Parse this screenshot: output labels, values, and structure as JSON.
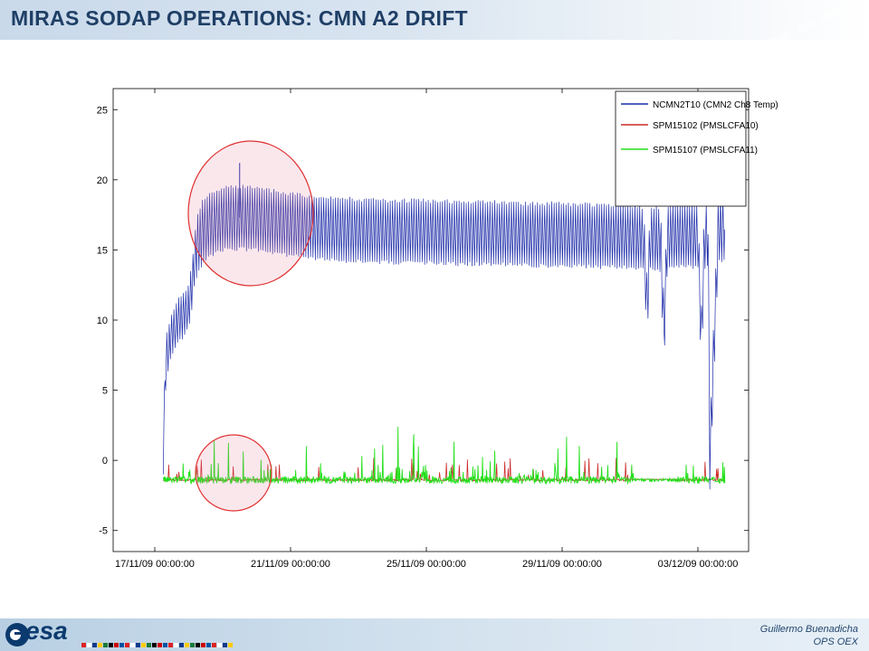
{
  "slide": {
    "title": "MIRAS SODAP OPERATIONS: CMN A2 DRIFT",
    "footer_logo": "esa",
    "author": "Guillermo Buenadicha",
    "department": "OPS OEX"
  },
  "colors": {
    "title": "#1f3f66",
    "ncmn": "#1c2ba8",
    "spm15102": "#cc2a2a",
    "spm15107": "#22e01a",
    "highlight_circle": "#e03030"
  },
  "chart_data": {
    "type": "line",
    "title": "",
    "xlabel": "",
    "ylabel": "",
    "xlim": [
      "17/11/09 00:00:00",
      "04/12/09 12:00:00"
    ],
    "ylim": [
      -6.5,
      26.5
    ],
    "yticks": [
      -5,
      0,
      5,
      10,
      15,
      20,
      25
    ],
    "ytick_labels": [
      "-5",
      "0",
      "5",
      "10",
      "15",
      "20",
      "25"
    ],
    "xtick_labels": [
      "17/11/09 00:00:00",
      "21/11/09 00:00:00",
      "25/11/09 00:00:00",
      "29/11/09 00:00:00",
      "03/12/09 00:00:00"
    ],
    "xtick_day_offsets": [
      0,
      4,
      8,
      12,
      16
    ],
    "grid": false,
    "legend_position": "top-right",
    "series": [
      {
        "name": "NCMN2T10 (CMN2 Ch8 Temp)",
        "color": "#1c2ba8",
        "x_days": [
          0.25,
          0.28,
          0.35,
          0.5,
          0.7,
          0.9,
          1.0,
          1.1,
          1.2,
          1.4,
          1.6,
          1.8,
          2.0,
          2.5,
          3.0,
          3.5,
          4.0,
          5.0,
          6.0,
          7.0,
          8.0,
          9.0,
          10.0,
          11.0,
          12.0,
          13.0,
          14.0,
          14.4,
          14.5,
          14.6,
          14.9,
          15.0,
          15.1,
          15.3,
          15.4,
          15.5,
          15.7,
          16.0,
          16.1,
          16.2,
          16.3,
          16.35,
          16.6,
          16.8
        ],
        "y_mid": [
          -1.0,
          5.0,
          7.5,
          9.0,
          10.0,
          10.5,
          11.0,
          12.5,
          15.0,
          16.3,
          16.8,
          17.0,
          17.2,
          17.3,
          17.2,
          17.0,
          16.8,
          16.5,
          16.4,
          16.3,
          16.3,
          16.2,
          16.2,
          16.1,
          16.1,
          16.0,
          16.0,
          15.8,
          11.0,
          15.8,
          15.8,
          9.0,
          16.0,
          16.0,
          16.0,
          16.0,
          16.0,
          16.0,
          8.5,
          16.0,
          16.0,
          0.0,
          16.5,
          16.5
        ],
        "amplitude": 2.2,
        "spike": {
          "x_day": 2.5,
          "y": 21.2
        }
      },
      {
        "name": "SPM15102 (PMSLCFA10)",
        "color": "#cc2a2a",
        "baseline": -1.4,
        "gap_days": [
          14.1,
          15.4
        ]
      },
      {
        "name": "SPM15107 (PMSLCFA11)",
        "color": "#22e01a",
        "baseline": -1.4,
        "spike_max": 2.4
      }
    ],
    "legend": [
      {
        "label": "NCMN2T10 (CMN2 Ch8 Temp)",
        "color": "#1c2ba8"
      },
      {
        "label": "SPM15102 (PMSLCFA10)",
        "color": "#cc2a2a"
      },
      {
        "label": "SPM15107 (PMSLCFA11)",
        "color": "#22e01a"
      }
    ],
    "annotations": [
      {
        "type": "circle",
        "note": "drift region on temperature trace"
      },
      {
        "type": "circle",
        "note": "drift region on SPM traces"
      }
    ]
  }
}
